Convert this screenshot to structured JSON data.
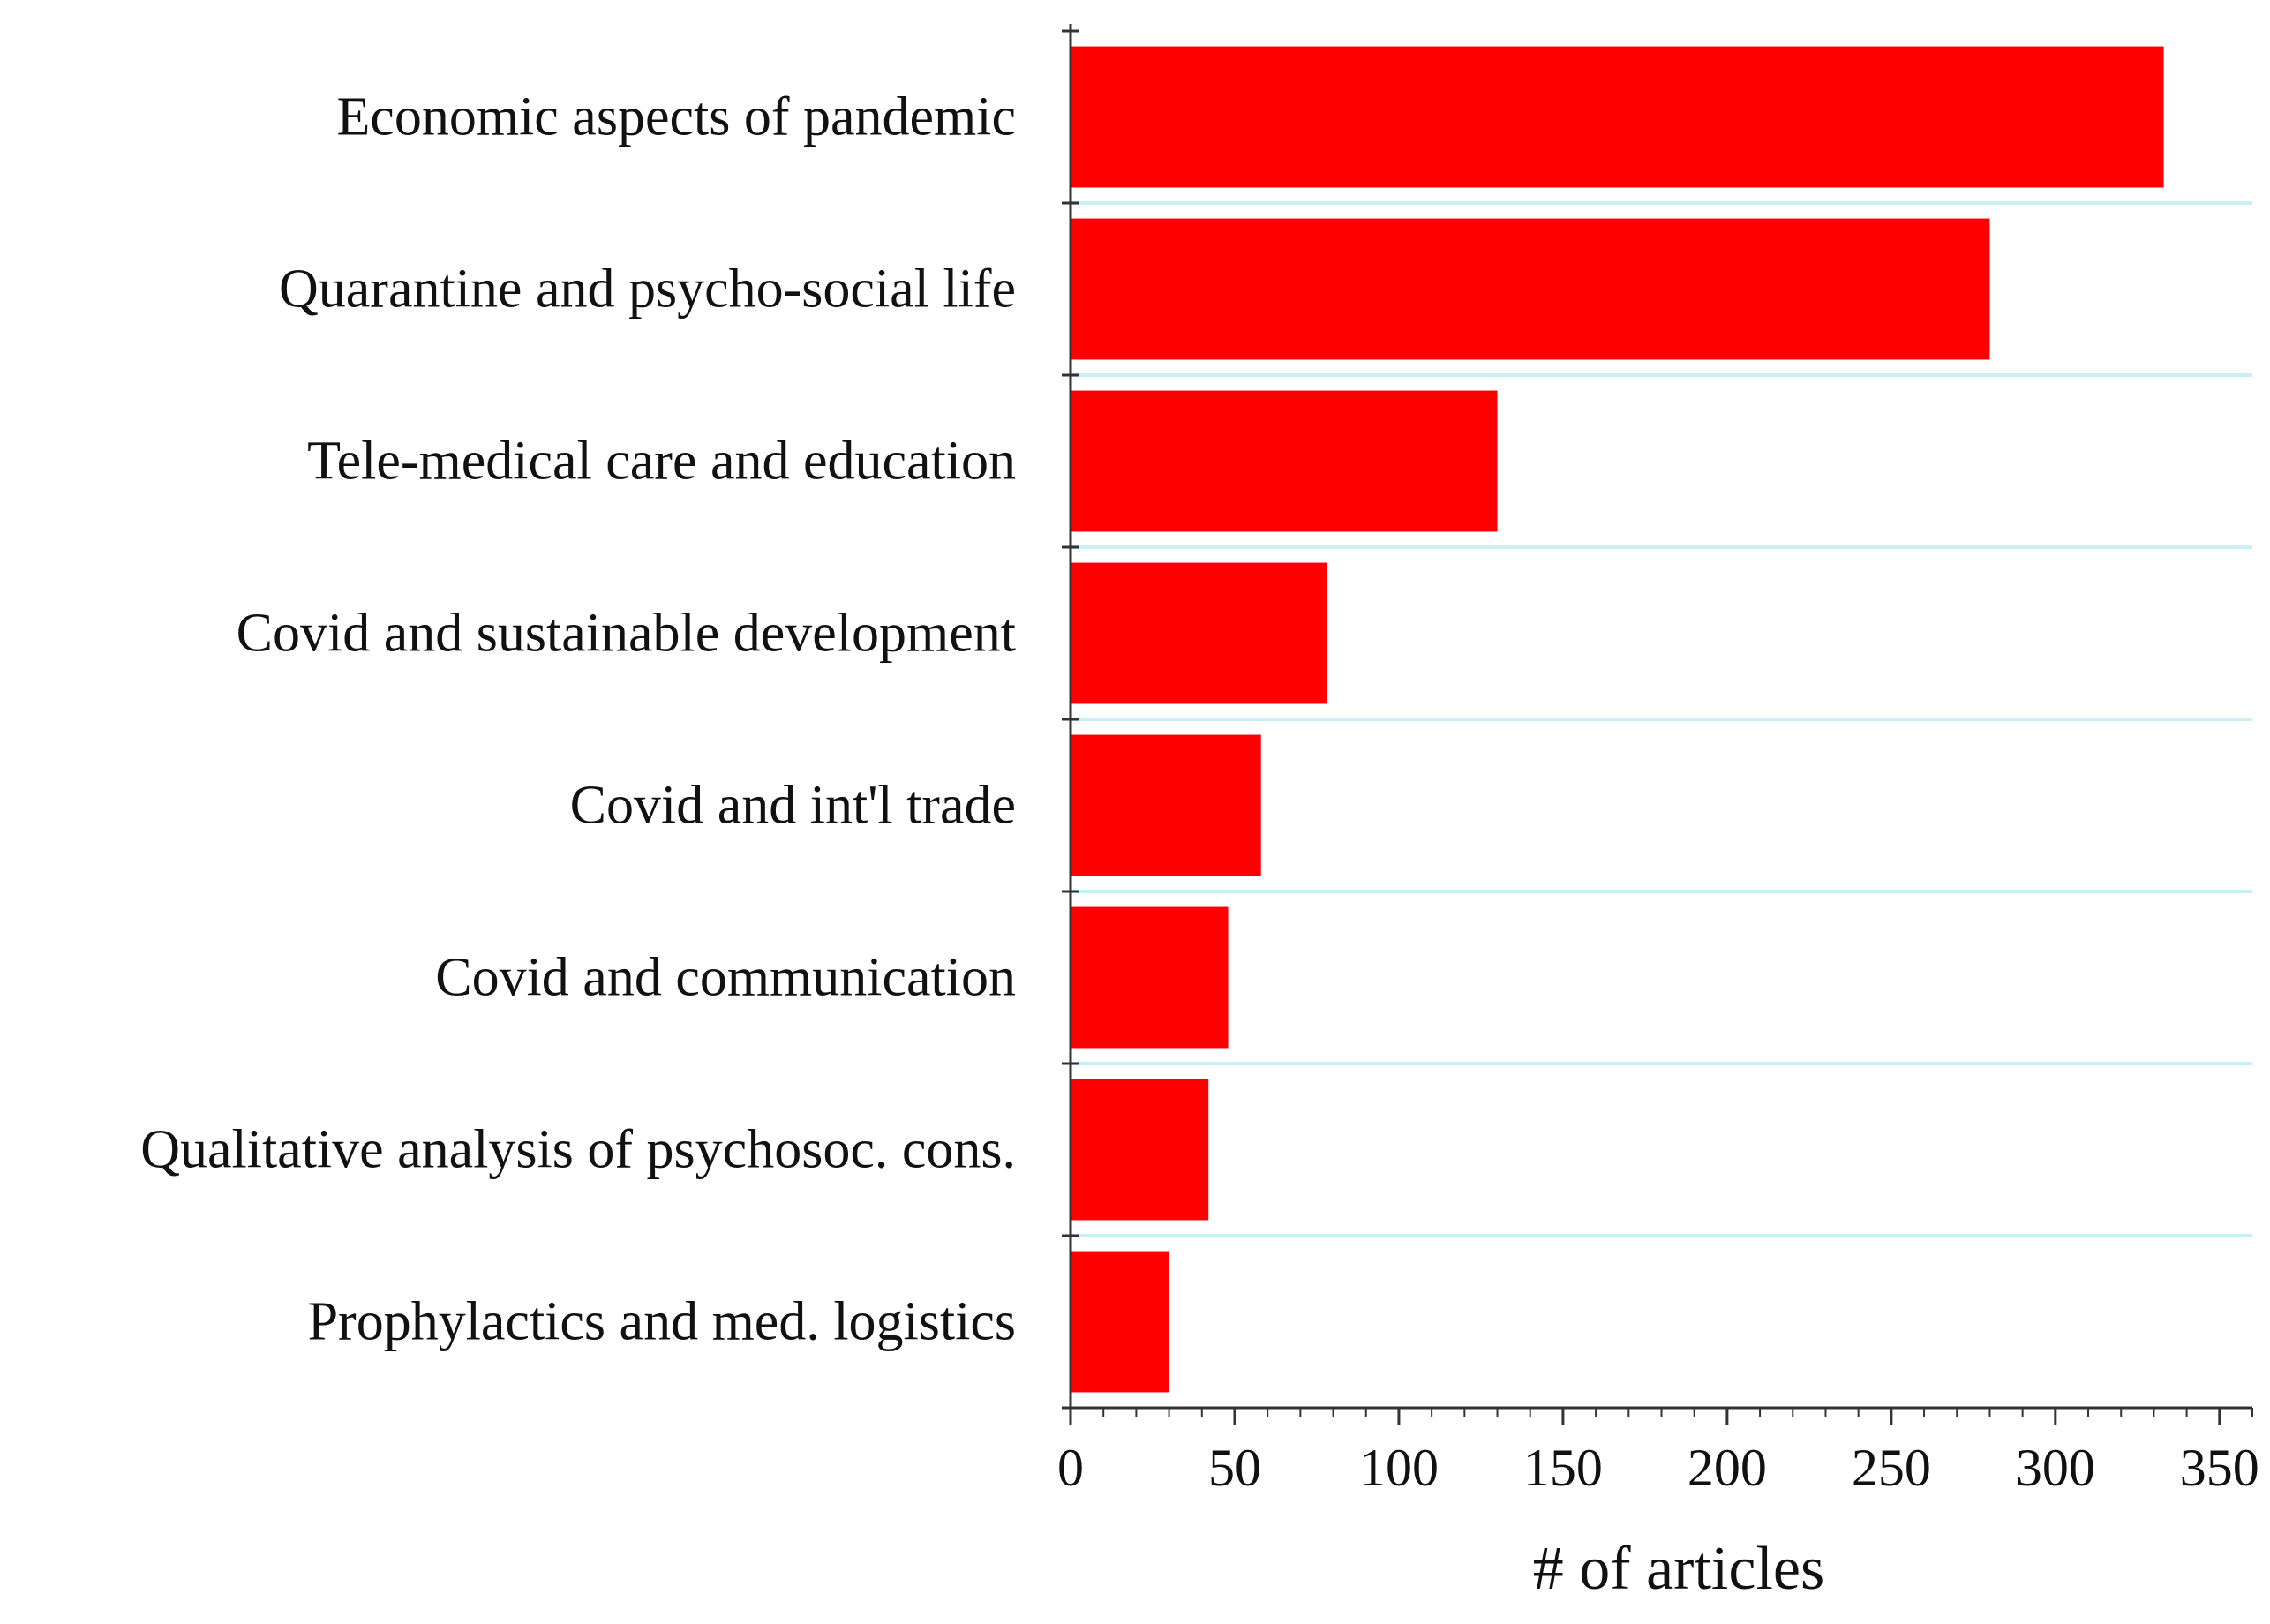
{
  "chart_data": {
    "type": "bar",
    "orientation": "horizontal",
    "categories": [
      "Economic aspects of pandemic",
      "Quarantine and psycho-social life",
      "Tele-medical care and education",
      "Covid and sustainable development",
      "Covid and int'l trade",
      "Covid and communication",
      "Qualitative analysis of psychosoc. cons.",
      "Prophylactics and med. logistics"
    ],
    "values": [
      333,
      280,
      130,
      78,
      58,
      48,
      42,
      30
    ],
    "xlabel": "# of articles",
    "ylabel": "",
    "title": "",
    "xlim": [
      0,
      360
    ],
    "xticks": [
      "0",
      "50",
      "100",
      "150",
      "200",
      "250",
      "300",
      "350"
    ],
    "grid": "horizontal separators between bars",
    "colors": {
      "bar": "#ff0000",
      "grid": "#c8f0f5",
      "axis": "#333333"
    }
  }
}
